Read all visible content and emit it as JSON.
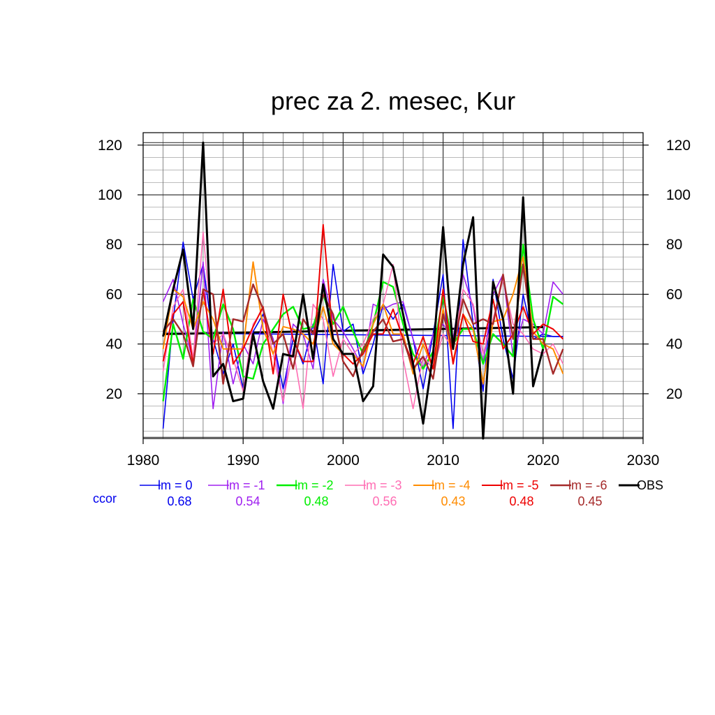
{
  "chart_data": {
    "type": "line",
    "title": "prec za 2. mesec, Kur",
    "xlabel": "",
    "ylabel": "",
    "xlim": [
      1980,
      2030
    ],
    "ylim": [
      2,
      125
    ],
    "xticks": [
      1980,
      1990,
      2000,
      2010,
      2020,
      2030
    ],
    "yticks": [
      20,
      40,
      60,
      80,
      100,
      120
    ],
    "grid": true,
    "legend_position": "bottom",
    "correlation_label": "ccor",
    "x": [
      1982,
      1983,
      1984,
      1985,
      1986,
      1987,
      1988,
      1989,
      1990,
      1991,
      1992,
      1993,
      1994,
      1995,
      1996,
      1997,
      1998,
      1999,
      2000,
      2001,
      2002,
      2003,
      2004,
      2005,
      2006,
      2007,
      2008,
      2009,
      2010,
      2011,
      2012,
      2013,
      2014,
      2015,
      2016,
      2017,
      2018,
      2019,
      2020,
      2021,
      2022
    ],
    "series": [
      {
        "name": "lm = 0",
        "color": "#0000ee",
        "ccor": "0.68",
        "width": 1.6,
        "values": [
          6,
          50,
          81,
          58,
          72,
          42,
          28,
          40,
          22,
          45,
          52,
          42,
          22,
          42,
          32,
          48,
          24,
          72,
          45,
          48,
          28,
          40,
          56,
          50,
          56,
          42,
          22,
          44,
          68,
          6,
          82,
          48,
          21,
          66,
          42,
          26,
          60,
          42,
          44,
          43,
          43
        ]
      },
      {
        "name": "lm = -1",
        "color": "#a020f0",
        "ccor": "0.54",
        "width": 1.6,
        "values": [
          57,
          66,
          48,
          33,
          73,
          14,
          45,
          24,
          40,
          32,
          50,
          42,
          16,
          48,
          44,
          30,
          66,
          50,
          45,
          38,
          30,
          56,
          54,
          56,
          57,
          42,
          30,
          44,
          48,
          42,
          68,
          55,
          32,
          60,
          68,
          35,
          50,
          48,
          44,
          65,
          60
        ]
      },
      {
        "name": "lm = -2",
        "color": "#00ee00",
        "ccor": "0.48",
        "width": 2.4,
        "values": [
          17,
          48,
          34,
          58,
          45,
          42,
          56,
          46,
          27,
          26,
          40,
          46,
          52,
          55,
          46,
          47,
          60,
          48,
          55,
          45,
          36,
          48,
          65,
          63,
          48,
          36,
          30,
          37,
          59,
          40,
          46,
          46,
          32,
          44,
          40,
          35,
          80,
          50,
          38,
          59,
          56
        ]
      },
      {
        "name": "lm = -3",
        "color": "#ff6eb4",
        "ccor": "0.56",
        "width": 1.6,
        "values": [
          29,
          55,
          62,
          34,
          85,
          40,
          44,
          34,
          21,
          48,
          54,
          36,
          17,
          38,
          14,
          56,
          50,
          27,
          42,
          36,
          40,
          50,
          56,
          72,
          34,
          14,
          35,
          30,
          44,
          38,
          62,
          56,
          36,
          50,
          66,
          48,
          44,
          38,
          36,
          40,
          32
        ]
      },
      {
        "name": "lm = -4",
        "color": "#ff8c00",
        "ccor": "0.43",
        "width": 2.0,
        "values": [
          38,
          62,
          59,
          46,
          57,
          50,
          38,
          38,
          38,
          73,
          46,
          36,
          47,
          46,
          44,
          40,
          55,
          40,
          36,
          36,
          31,
          48,
          56,
          44,
          44,
          28,
          40,
          30,
          54,
          33,
          52,
          46,
          24,
          49,
          50,
          60,
          75,
          45,
          40,
          38,
          28
        ]
      },
      {
        "name": "lm = -5",
        "color": "#ee0000",
        "ccor": "0.48",
        "width": 2.0,
        "values": [
          33,
          52,
          57,
          32,
          62,
          36,
          62,
          32,
          38,
          47,
          55,
          28,
          60,
          42,
          33,
          33,
          88,
          42,
          36,
          32,
          36,
          44,
          44,
          54,
          42,
          32,
          43,
          30,
          62,
          32,
          52,
          41,
          40,
          58,
          38,
          44,
          55,
          44,
          48,
          46,
          42
        ]
      },
      {
        "name": "lm = -6",
        "color": "#a52a2a",
        "ccor": "0.45",
        "width": 2.4,
        "values": [
          45,
          50,
          44,
          31,
          62,
          60,
          24,
          50,
          49,
          64,
          54,
          40,
          44,
          30,
          50,
          44,
          60,
          52,
          33,
          27,
          38,
          45,
          50,
          41,
          42,
          30,
          35,
          26,
          52,
          38,
          58,
          48,
          50,
          48,
          68,
          42,
          72,
          42,
          42,
          28,
          38
        ]
      },
      {
        "name": "OBS",
        "color": "#000000",
        "ccor": "",
        "width": 3.0,
        "values": [
          43,
          62,
          78,
          46,
          121,
          27,
          32,
          17,
          18,
          44,
          25,
          14,
          36,
          35,
          60,
          34,
          64,
          42,
          36,
          36,
          17,
          23,
          76,
          71,
          52,
          32,
          8,
          36,
          87,
          38,
          72,
          91,
          2,
          65,
          50,
          20,
          99,
          23,
          38,
          null,
          null
        ]
      }
    ],
    "trend_lines": [
      {
        "name": "lm = 0 trend",
        "color": "#0000ee",
        "x": [
          1982,
          2022
        ],
        "y": [
          44.4,
          43.0
        ]
      },
      {
        "name": "OBS trend",
        "color": "#000000",
        "x": [
          1982,
          2020
        ],
        "y": [
          44.0,
          46.8
        ]
      }
    ]
  }
}
